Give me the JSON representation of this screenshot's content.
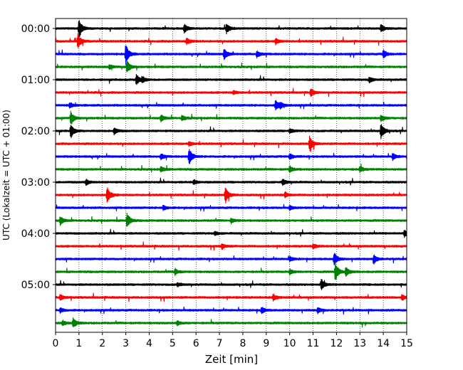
{
  "chart_data": {
    "type": "line",
    "xlabel": "Zeit  [min]",
    "ylabel": "UTC (Lokalzeit = UTC + 01:00)",
    "xlim": [
      0,
      15
    ],
    "x_ticks": [
      "0",
      "1",
      "2",
      "3",
      "4",
      "5",
      "6",
      "7",
      "8",
      "9",
      "10",
      "11",
      "12",
      "13",
      "14",
      "15"
    ],
    "y_tick_labels": [
      "00:00",
      "01:00",
      "02:00",
      "03:00",
      "04:00",
      "05:00"
    ],
    "trace_interval_minutes": 15,
    "trace_count": 24,
    "grid": "vertical dotted lines at each minute",
    "color_cycle": [
      "#000000",
      "#ff0000",
      "#0000ff",
      "#008000"
    ],
    "traces": [
      {
        "start": "00:00",
        "events": [
          {
            "t": 1.0,
            "amp": 1.0
          },
          {
            "t": 5.5,
            "amp": 0.45
          },
          {
            "t": 7.3,
            "amp": 0.5
          },
          {
            "t": 13.9,
            "amp": 0.4
          }
        ]
      },
      {
        "start": "00:15",
        "events": [
          {
            "t": 0.95,
            "amp": 0.9
          },
          {
            "t": 5.6,
            "amp": 0.3
          },
          {
            "t": 9.4,
            "amp": 0.3
          }
        ]
      },
      {
        "start": "00:30",
        "events": [
          {
            "t": 3.0,
            "amp": 1.0
          },
          {
            "t": 7.2,
            "amp": 0.6
          },
          {
            "t": 8.6,
            "amp": 0.35
          },
          {
            "t": 14.0,
            "amp": 0.45
          }
        ]
      },
      {
        "start": "00:45",
        "events": [
          {
            "t": 3.05,
            "amp": 0.7
          },
          {
            "t": 2.3,
            "amp": 0.25
          }
        ]
      },
      {
        "start": "01:00",
        "events": [
          {
            "t": 3.45,
            "amp": 0.6
          },
          {
            "t": 3.7,
            "amp": 0.3
          },
          {
            "t": 13.4,
            "amp": 0.3
          }
        ]
      },
      {
        "start": "01:15",
        "events": [
          {
            "t": 10.9,
            "amp": 0.4
          },
          {
            "t": 7.6,
            "amp": 0.2
          }
        ]
      },
      {
        "start": "01:30",
        "events": [
          {
            "t": 9.4,
            "amp": 0.6
          },
          {
            "t": 9.6,
            "amp": 0.3
          },
          {
            "t": 0.6,
            "amp": 0.3
          }
        ]
      },
      {
        "start": "01:45",
        "events": [
          {
            "t": 0.65,
            "amp": 0.7
          },
          {
            "t": 4.5,
            "amp": 0.35
          },
          {
            "t": 5.4,
            "amp": 0.3
          },
          {
            "t": 13.9,
            "amp": 0.35
          }
        ]
      },
      {
        "start": "02:00",
        "events": [
          {
            "t": 0.65,
            "amp": 0.75
          },
          {
            "t": 2.5,
            "amp": 0.35
          },
          {
            "t": 13.9,
            "amp": 0.8
          },
          {
            "t": 10.0,
            "amp": 0.25
          }
        ]
      },
      {
        "start": "02:15",
        "events": [
          {
            "t": 10.85,
            "amp": 0.8
          },
          {
            "t": 5.7,
            "amp": 0.25
          }
        ]
      },
      {
        "start": "02:30",
        "events": [
          {
            "t": 5.7,
            "amp": 0.9
          },
          {
            "t": 4.5,
            "amp": 0.3
          },
          {
            "t": 10.0,
            "amp": 0.3
          },
          {
            "t": 14.4,
            "amp": 0.35
          }
        ]
      },
      {
        "start": "02:45",
        "events": [
          {
            "t": 4.5,
            "amp": 0.3
          },
          {
            "t": 10.0,
            "amp": 0.35
          },
          {
            "t": 13.0,
            "amp": 0.3
          }
        ]
      },
      {
        "start": "03:00",
        "events": [
          {
            "t": 1.3,
            "amp": 0.3
          },
          {
            "t": 9.7,
            "amp": 0.35
          },
          {
            "t": 5.9,
            "amp": 0.25
          }
        ]
      },
      {
        "start": "03:15",
        "events": [
          {
            "t": 2.2,
            "amp": 0.9
          },
          {
            "t": 7.25,
            "amp": 0.9
          },
          {
            "t": 9.8,
            "amp": 0.3
          }
        ]
      },
      {
        "start": "03:30",
        "events": [
          {
            "t": 4.6,
            "amp": 0.25
          },
          {
            "t": 10.0,
            "amp": 0.2
          }
        ]
      },
      {
        "start": "03:45",
        "events": [
          {
            "t": 3.05,
            "amp": 0.8
          },
          {
            "t": 0.2,
            "amp": 0.45
          },
          {
            "t": 7.5,
            "amp": 0.25
          }
        ]
      },
      {
        "start": "04:00",
        "events": [
          {
            "t": 14.9,
            "amp": 0.35
          },
          {
            "t": 6.8,
            "amp": 0.2
          }
        ]
      },
      {
        "start": "04:15",
        "events": [
          {
            "t": 7.1,
            "amp": 0.3
          },
          {
            "t": 11.0,
            "amp": 0.25
          }
        ]
      },
      {
        "start": "04:30",
        "events": [
          {
            "t": 11.9,
            "amp": 0.7
          },
          {
            "t": 13.6,
            "amp": 0.45
          },
          {
            "t": 10.0,
            "amp": 0.25
          }
        ]
      },
      {
        "start": "04:45",
        "events": [
          {
            "t": 11.95,
            "amp": 1.0
          },
          {
            "t": 12.4,
            "amp": 0.5
          },
          {
            "t": 5.1,
            "amp": 0.35
          },
          {
            "t": 10.0,
            "amp": 0.3
          }
        ]
      },
      {
        "start": "05:00",
        "events": [
          {
            "t": 11.35,
            "amp": 0.6
          },
          {
            "t": 5.2,
            "amp": 0.2
          }
        ]
      },
      {
        "start": "05:15",
        "events": [
          {
            "t": 9.3,
            "amp": 0.35
          },
          {
            "t": 0.2,
            "amp": 0.3
          },
          {
            "t": 14.8,
            "amp": 0.3
          }
        ]
      },
      {
        "start": "05:30",
        "events": [
          {
            "t": 8.8,
            "amp": 0.35
          },
          {
            "t": 11.2,
            "amp": 0.3
          },
          {
            "t": 0.2,
            "amp": 0.25
          }
        ]
      },
      {
        "start": "05:45",
        "events": [
          {
            "t": 0.75,
            "amp": 0.55
          },
          {
            "t": 5.2,
            "amp": 0.25
          },
          {
            "t": 0.3,
            "amp": 0.25
          }
        ]
      }
    ]
  }
}
